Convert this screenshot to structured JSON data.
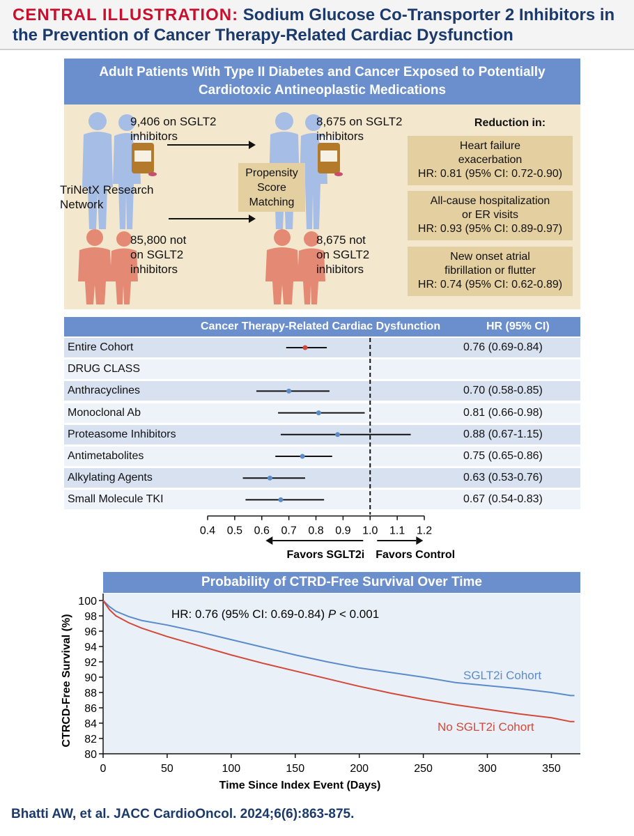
{
  "header": {
    "label": "CENTRAL ILLUSTRATION:",
    "title_line1": "Sodium Glucose Co-Transporter 2 Inhibitors in",
    "title_line2": "the Prevention of Cancer Therapy-Related Cardiac Dysfunction"
  },
  "study": {
    "heading_line1": "Adult Patients With Type II Diabetes and Cancer Exposed to Potentially",
    "heading_line2": "Cardiotoxic Antineoplastic Medications",
    "sglt2_initial_line1": "9,406 on SGLT2",
    "sglt2_initial_line2": "inhibitors",
    "sglt2_matched_line1": "8,675 on SGLT2",
    "sglt2_matched_line2": "inhibitors",
    "network_line1": "TriNetX Research",
    "network_line2": "Network",
    "matching_line1": "Propensity",
    "matching_line2": "Score",
    "matching_line3": "Matching",
    "control_initial_line1": "85,800 not",
    "control_initial_line2": "on SGLT2",
    "control_initial_line3": "inhibitors",
    "control_matched_line1": "8,675 not",
    "control_matched_line2": "on SGLT2",
    "control_matched_line3": "inhibitors",
    "colors": {
      "sglt2": "#a6bde6",
      "control": "#e48a74",
      "pill": "#b47a2c"
    }
  },
  "reductions": {
    "title": "Reduction in:",
    "items": [
      {
        "line1": "Heart failure",
        "line2": "exacerbation",
        "hr": "HR: 0.81 (95% CI: 0.72-0.90)"
      },
      {
        "line1": "All-cause hospitalization",
        "line2": "or ER visits",
        "hr": "HR: 0.93 (95% CI: 0.89-0.97)"
      },
      {
        "line1": "New onset atrial",
        "line2": "fibrillation or flutter",
        "hr": "HR: 0.74 (95% CI: 0.62-0.89)"
      }
    ]
  },
  "forest": {
    "title": "Cancer Therapy-Related Cardiac Dysfunction",
    "hr_header": "HR (95% CI)",
    "favors_left": "Favors SGLT2i",
    "favors_right": "Favors Control",
    "ticks": [
      "0.4",
      "0.5",
      "0.6",
      "0.7",
      "0.8",
      "0.9",
      "1.0",
      "1.1",
      "1.2"
    ]
  },
  "chart_data": [
    {
      "type": "scatter",
      "title": "Cancer Therapy-Related Cardiac Dysfunction",
      "xlim": [
        0.4,
        1.2
      ],
      "reference_line": 1.0,
      "rows": [
        {
          "label": "Entire Cohort",
          "hr": 0.76,
          "lo": 0.69,
          "hi": 0.84,
          "text": "0.76 (0.69-0.84)",
          "highlight": true
        },
        {
          "label": "DRUG CLASS",
          "heading": true
        },
        {
          "label": "Anthracyclines",
          "hr": 0.7,
          "lo": 0.58,
          "hi": 0.85,
          "text": "0.70 (0.58-0.85)"
        },
        {
          "label": "Monoclonal Ab",
          "hr": 0.81,
          "lo": 0.66,
          "hi": 0.98,
          "text": "0.81 (0.66-0.98)"
        },
        {
          "label": "Proteasome Inhibitors",
          "hr": 0.88,
          "lo": 0.67,
          "hi": 1.15,
          "text": "0.88 (0.67-1.15)"
        },
        {
          "label": "Antimetabolites",
          "hr": 0.75,
          "lo": 0.65,
          "hi": 0.86,
          "text": "0.75 (0.65-0.86)"
        },
        {
          "label": "Alkylating Agents",
          "hr": 0.63,
          "lo": 0.53,
          "hi": 0.76,
          "text": "0.63 (0.53-0.76)"
        },
        {
          "label": "Small Molecule TKI",
          "hr": 0.67,
          "lo": 0.54,
          "hi": 0.83,
          "text": "0.67 (0.54-0.83)"
        }
      ]
    },
    {
      "type": "line",
      "title": "Probability of CTRD-Free Survival Over Time",
      "xlabel": "Time Since Index Event (Days)",
      "ylabel": "CTRCD-Free Survival (%)",
      "xlim": [
        0,
        370
      ],
      "ylim": [
        80,
        100
      ],
      "xticks": [
        0,
        50,
        100,
        150,
        200,
        250,
        300,
        350
      ],
      "yticks": [
        80,
        82,
        84,
        86,
        88,
        90,
        92,
        94,
        96,
        98,
        100
      ],
      "annotation": "HR: 0.76 (95% CI: 0.69-0.84)",
      "p_label": "P",
      "p_value": " < 0.001",
      "series": [
        {
          "name": "SGLT2i Cohort",
          "color": "#5b8bc8",
          "x": [
            0,
            5,
            10,
            20,
            30,
            50,
            75,
            100,
            125,
            150,
            175,
            200,
            225,
            250,
            275,
            300,
            325,
            350,
            365,
            368
          ],
          "values": [
            100,
            99.2,
            98.6,
            97.9,
            97.4,
            96.8,
            95.9,
            94.9,
            93.9,
            92.9,
            92.0,
            91.2,
            90.6,
            90.0,
            89.3,
            88.9,
            88.5,
            88.0,
            87.6,
            87.6
          ]
        },
        {
          "name": "No SGLT2i Cohort",
          "color": "#d2493a",
          "x": [
            0,
            5,
            10,
            20,
            30,
            50,
            75,
            100,
            125,
            150,
            175,
            200,
            225,
            250,
            275,
            300,
            325,
            350,
            365,
            368
          ],
          "values": [
            100,
            98.8,
            98.0,
            97.1,
            96.4,
            95.3,
            94.1,
            92.9,
            91.8,
            90.8,
            89.8,
            88.8,
            87.9,
            87.1,
            86.4,
            85.8,
            85.2,
            84.7,
            84.2,
            84.2
          ]
        }
      ]
    }
  ],
  "citation": "Bhatti AW, et al. JACC CardioOncol. 2024;6(6):863-875."
}
